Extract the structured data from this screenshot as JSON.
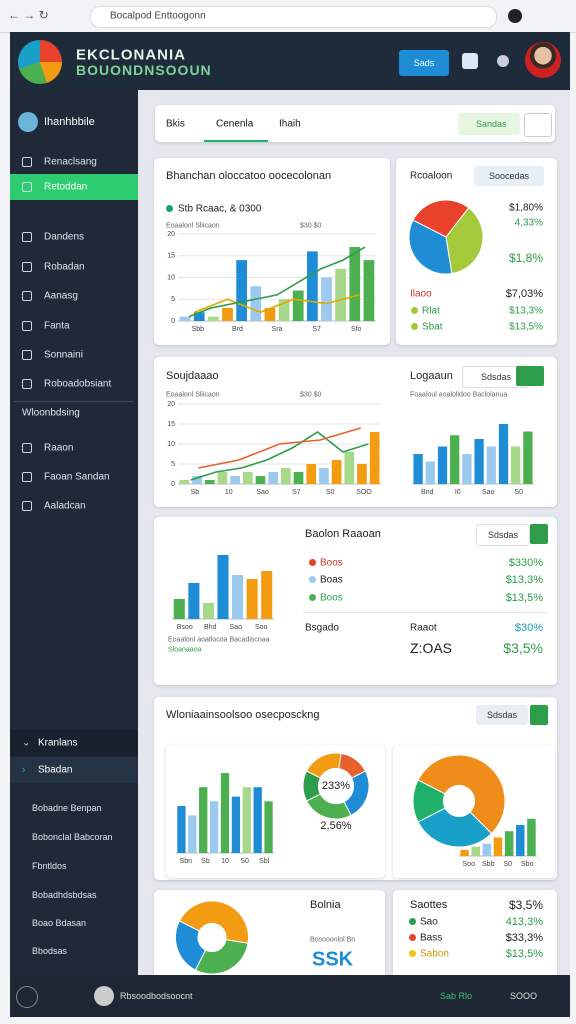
{
  "browser": {
    "url": "Bocalpod Enttoogonn"
  },
  "header": {
    "title": "EKCLONANIA",
    "subtitle": "BOUONDNSOOUN",
    "badge": "Sads"
  },
  "sidebar": {
    "user": "Ihanhbbile",
    "items": [
      "Renaclsang",
      "Retoddan",
      "Dandens",
      "Robadan",
      "Aanasg",
      "Fanta",
      "Sonnaini",
      "Roboadobsiant",
      "Wloonbdsing",
      "Raaon",
      "Faoan Sandan",
      "Aaladcan"
    ],
    "lower": [
      "Kranlans",
      "Sbadan"
    ],
    "links": [
      "Bobadne Benpan",
      "Bobonclal Babcoran",
      "Fbntldos",
      "Bobadhdsbdsas",
      "Boao Bdasan",
      "Bbodsas"
    ]
  },
  "tabs": {
    "items": [
      "Bkis",
      "Cenenla",
      "Ihaih"
    ],
    "button": "Sandas"
  },
  "panels": {
    "p1": {
      "title": "Bhanchan oloccatoo oocecolonan",
      "legend": "Stb Rcaac, & 0300",
      "caption": "Eoaalonl Sliicaon",
      "caption_right": "$30 $0"
    },
    "p1r": {
      "title": "Rcoaloon",
      "chip": "Soocedas",
      "top": [
        "$1,80%",
        "4,33%",
        "$1,8%"
      ],
      "rows": [
        {
          "label": "Ilaoo",
          "value": "$7,03%"
        },
        {
          "label": "Rlat",
          "value": "$13,3%"
        },
        {
          "label": "Sbat",
          "value": "$13,5%"
        }
      ]
    },
    "p2": {
      "title": "Soujdaaao",
      "caption": "Eoaalonl Sliicaon",
      "caption_right": "$30 $0",
      "title_right": "Logaaun",
      "chip": "Sdsdas",
      "caption_far": "Foaaloul aoalolidoo Baclolanua"
    },
    "p3": {
      "title": "Baolon Raaoan",
      "chip": "Sdsdas",
      "rows": [
        {
          "label": "Boos",
          "value": "$330%"
        },
        {
          "label": "Boas",
          "value": "$13,3%"
        },
        {
          "label": "Boos",
          "value": "$13,5%"
        }
      ],
      "note": "Eoaalonl aoatlocoa Bacadiscnaa",
      "note2": "Sloanaaoa",
      "foot": [
        "Bsgado",
        "Raaot",
        "$30%"
      ],
      "big": [
        "Z:OAS",
        "$3,5%"
      ]
    },
    "p4": {
      "title": "Wloniaainsoolsoo osecposckng",
      "chip": "Sdsdas",
      "donut_center": "233%",
      "donut_below": "2,56%"
    },
    "p5": {
      "title": "Bolnia",
      "caption": "Bosooonlol Bn",
      "big": "SSK",
      "head": [
        "Saottes",
        "$3,5%"
      ],
      "rows": [
        {
          "label": "Sao",
          "value": "413,3%"
        },
        {
          "label": "Bass",
          "value": "$33,3%"
        },
        {
          "label": "Sabon",
          "value": "$13,5%"
        }
      ]
    }
  },
  "footer": {
    "user": "Rbsoodbodsoocnt",
    "status": "Sab Rlo",
    "count": "SOOO"
  },
  "charts": [
    {
      "type": "bar",
      "ylim": [
        0,
        20
      ],
      "yticks": [
        0,
        5,
        10,
        15,
        20
      ],
      "xlabels": [
        "Sbb",
        "Brd",
        "Sra",
        "S7",
        "Sfo"
      ],
      "values": [
        1,
        2,
        1,
        3,
        14,
        8,
        3,
        5,
        7,
        16,
        10,
        12,
        17,
        14
      ],
      "colors": [
        "#9cc9ee",
        "#1f8dd6",
        "#a6d98a",
        "#f39c12",
        "#1f8dd6",
        "#9cc9ee",
        "#f39c12",
        "#a6d98a",
        "#4caf50",
        "#1f8dd6",
        "#9cc9ee",
        "#a6d98a",
        "#4caf50",
        "#4caf50"
      ],
      "lines": [
        {
          "color": "#e0a800",
          "values": [
            2,
            5,
            2,
            5,
            4,
            6
          ]
        },
        {
          "color": "#2e9d4a",
          "values": [
            1,
            3,
            4,
            5,
            6,
            9,
            12,
            14,
            17
          ]
        }
      ]
    },
    {
      "type": "pie",
      "values": [
        28,
        37,
        35
      ],
      "colors": [
        "#e8412c",
        "#a4c93a",
        "#1f8dd6"
      ]
    },
    {
      "type": "bar",
      "ylim": [
        0,
        20
      ],
      "yticks": [
        0,
        5,
        10,
        15,
        20
      ],
      "xlabels": [
        "Sb",
        "10",
        "Sao",
        "S7",
        "S0",
        "SOO"
      ],
      "values": [
        1,
        2,
        1,
        3,
        2,
        3,
        2,
        3,
        4,
        3,
        5,
        4,
        6,
        8,
        5,
        13
      ],
      "colors": [
        "#a6d98a",
        "#9cc9ee",
        "#4caf50",
        "#a6d98a",
        "#9cc9ee",
        "#a6d98a",
        "#4caf50",
        "#9cc9ee",
        "#a6d98a",
        "#4caf50",
        "#f39c12",
        "#9cc9ee",
        "#f39c12",
        "#a6d98a",
        "#f39c12",
        "#f39c12"
      ],
      "lines": [
        {
          "color": "#2e9d4a",
          "values": [
            1,
            3,
            4,
            6,
            9,
            13,
            8,
            10
          ]
        },
        {
          "color": "#e8612c",
          "values": [
            4,
            6,
            10,
            11,
            14
          ]
        }
      ]
    },
    {
      "type": "bar",
      "ylim": [
        0,
        20
      ],
      "xlabels": [
        "Bnd",
        "I0",
        "Sao",
        "S0"
      ],
      "values": [
        8,
        6,
        10,
        13,
        8,
        12,
        10,
        16,
        10,
        14
      ],
      "colors": [
        "#1f8dd6",
        "#9cc9ee",
        "#1f8dd6",
        "#4caf50",
        "#9cc9ee",
        "#1f8dd6",
        "#9cc9ee",
        "#1f8dd6",
        "#a6d98a",
        "#4caf50"
      ]
    },
    {
      "type": "bar",
      "ylim": [
        0,
        20
      ],
      "xlabels": [
        "Bsoo",
        "Bhd",
        "Sao",
        "Soo"
      ],
      "values": [
        5,
        9,
        4,
        16,
        11,
        10,
        12
      ],
      "colors": [
        "#4caf50",
        "#1f8dd6",
        "#a6d98a",
        "#1f8dd6",
        "#9cc9ee",
        "#f39c12",
        "#f39c12"
      ]
    },
    {
      "type": "bar",
      "ylim": [
        0,
        20
      ],
      "xlabels": [
        "Sbn",
        "Sb",
        "10",
        "S0",
        "Sbl"
      ],
      "values": [
        10,
        8,
        14,
        11,
        17,
        12,
        14,
        14,
        11
      ],
      "colors": [
        "#1f8dd6",
        "#9cc9ee",
        "#4caf50",
        "#9cc9ee",
        "#4caf50",
        "#1f8dd6",
        "#a6d98a",
        "#1f8dd6",
        "#4caf50"
      ]
    },
    {
      "type": "pie",
      "hole": 0.55,
      "values": [
        20,
        15,
        25,
        25,
        15
      ],
      "colors": [
        "#f39c12",
        "#e8612c",
        "#1f8dd6",
        "#4caf50",
        "#2e9d4a"
      ]
    },
    {
      "type": "pie",
      "hole": 0.35,
      "values": [
        55,
        30,
        15
      ],
      "colors": [
        "#f08c1a",
        "#19a0c8",
        "#1fb06a"
      ]
    },
    {
      "type": "bar",
      "ylim": [
        0,
        20
      ],
      "xlabels": [
        "Soo",
        "Sbb",
        "S0",
        "Sbo"
      ],
      "values": [
        2,
        3,
        4,
        6,
        8,
        10,
        12
      ],
      "colors": [
        "#f39c12",
        "#a6d98a",
        "#9cc9ee",
        "#f39c12",
        "#4caf50",
        "#1f8dd6",
        "#4caf50"
      ]
    },
    {
      "type": "pie",
      "hole": 0.4,
      "values": [
        45,
        30,
        25
      ],
      "colors": [
        "#f39c12",
        "#4caf50",
        "#1f8dd6"
      ]
    }
  ]
}
